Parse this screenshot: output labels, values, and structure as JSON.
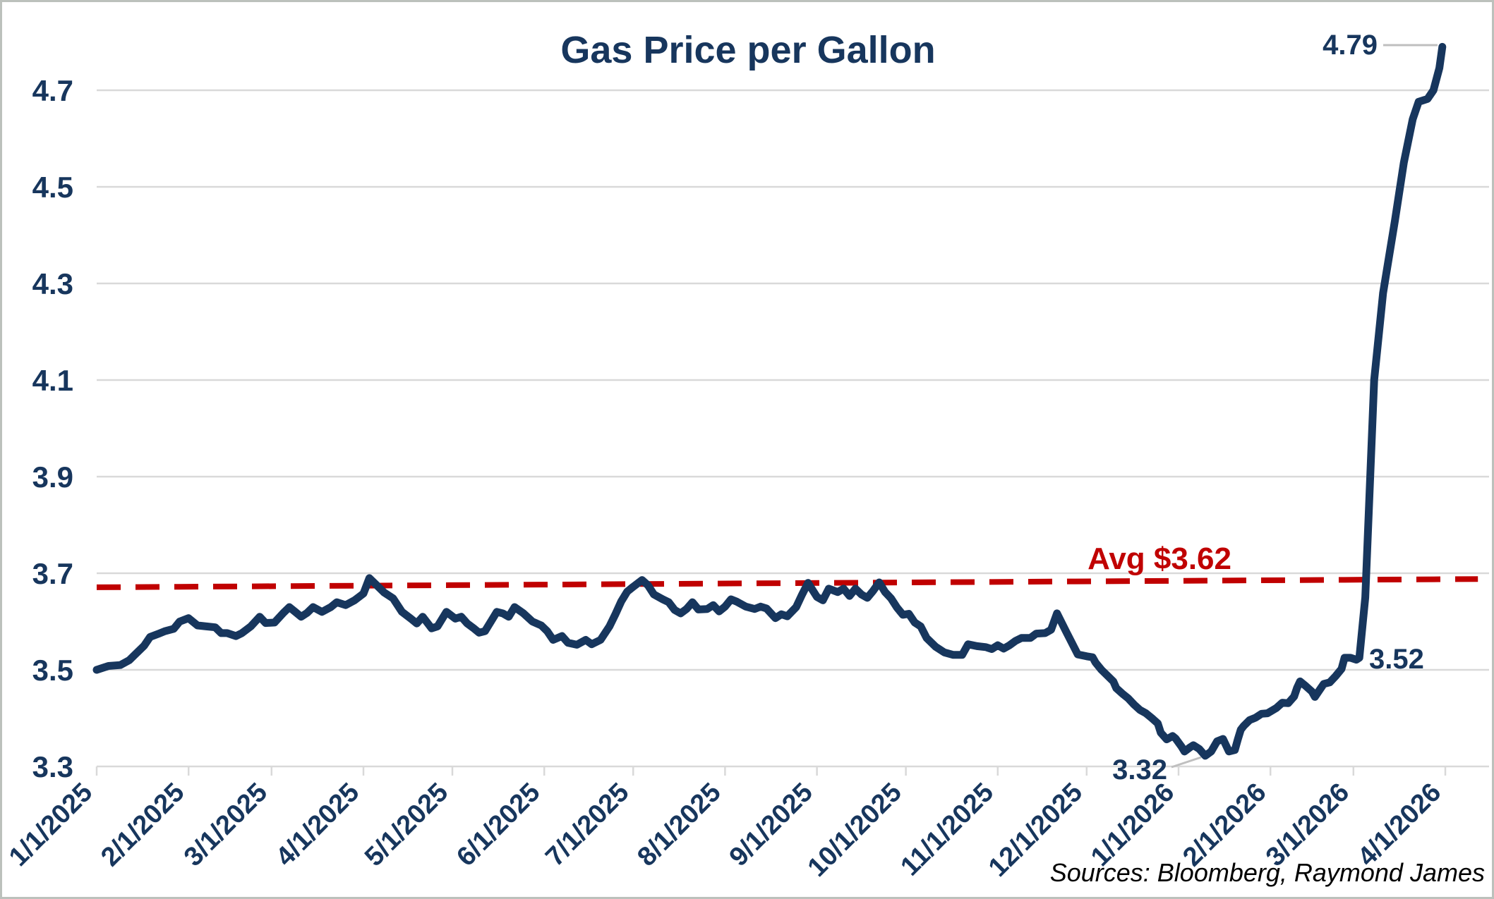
{
  "chart_data": {
    "type": "line",
    "title": "Gas Price per Gallon",
    "source_note": "Sources: Bloomberg, Raymond James",
    "colors": {
      "line": "#17365D",
      "grid": "#D9D9D9",
      "leader": "#BFBFBF",
      "axis_text": "#17365D",
      "average_line": "#C00000",
      "source_text": "#000000"
    },
    "y_axis": {
      "ticks": [
        3.3,
        3.5,
        3.7,
        3.9,
        4.1,
        4.3,
        4.5,
        4.7
      ],
      "min": 3.3,
      "max": 4.8,
      "grid": true
    },
    "x_axis": {
      "tick_labels": [
        "1/1/2025",
        "2/1/2025",
        "3/1/2025",
        "4/1/2025",
        "5/1/2025",
        "6/1/2025",
        "7/1/2025",
        "8/1/2025",
        "9/1/2025",
        "10/1/2025",
        "11/1/2025",
        "12/1/2025",
        "1/1/2026",
        "2/1/2026",
        "3/1/2026",
        "4/1/2026"
      ]
    },
    "average_line": {
      "label": "Avg $3.62",
      "start_date": "1/1/2025",
      "start_value": 3.671,
      "end_date": "4/12/2026",
      "end_value": 3.688,
      "style": "dashed"
    },
    "annotations": [
      {
        "text": "4.79",
        "date": "3/31/2026",
        "value": 4.79
      },
      {
        "text": "3.52",
        "date": "3/2/2026",
        "value": 3.52
      },
      {
        "text": "3.32",
        "date": "1/10/2026",
        "value": 3.32
      }
    ],
    "series": [
      {
        "name": "Gas Price per Gallon",
        "points": [
          [
            "1/1/2025",
            3.5
          ],
          [
            "1/5/2025",
            3.508
          ],
          [
            "1/9/2025",
            3.51
          ],
          [
            "1/12/2025",
            3.52
          ],
          [
            "1/14/2025",
            3.532
          ],
          [
            "1/17/2025",
            3.55
          ],
          [
            "1/19/2025",
            3.568
          ],
          [
            "1/22/2025",
            3.575
          ],
          [
            "1/24/2025",
            3.58
          ],
          [
            "1/27/2025",
            3.585
          ],
          [
            "1/29/2025",
            3.6
          ],
          [
            "2/1/2025",
            3.607
          ],
          [
            "2/4/2025",
            3.592
          ],
          [
            "2/7/2025",
            3.59
          ],
          [
            "2/10/2025",
            3.588
          ],
          [
            "2/12/2025",
            3.576
          ],
          [
            "2/14/2025",
            3.576
          ],
          [
            "2/17/2025",
            3.57
          ],
          [
            "2/19/2025",
            3.576
          ],
          [
            "2/22/2025",
            3.59
          ],
          [
            "2/25/2025",
            3.61
          ],
          [
            "2/27/2025",
            3.597
          ],
          [
            "3/2/2025",
            3.598
          ],
          [
            "3/5/2025",
            3.618
          ],
          [
            "3/7/2025",
            3.63
          ],
          [
            "3/9/2025",
            3.62
          ],
          [
            "3/11/2025",
            3.61
          ],
          [
            "3/13/2025",
            3.618
          ],
          [
            "3/15/2025",
            3.63
          ],
          [
            "3/18/2025",
            3.62
          ],
          [
            "3/21/2025",
            3.63
          ],
          [
            "3/23/2025",
            3.64
          ],
          [
            "3/26/2025",
            3.634
          ],
          [
            "3/29/2025",
            3.644
          ],
          [
            "4/1/2025",
            3.658
          ],
          [
            "4/3/2025",
            3.69
          ],
          [
            "4/5/2025",
            3.678
          ],
          [
            "4/8/2025",
            3.66
          ],
          [
            "4/11/2025",
            3.648
          ],
          [
            "4/14/2025",
            3.62
          ],
          [
            "4/17/2025",
            3.606
          ],
          [
            "4/19/2025",
            3.596
          ],
          [
            "4/21/2025",
            3.61
          ],
          [
            "4/24/2025",
            3.586
          ],
          [
            "4/26/2025",
            3.59
          ],
          [
            "4/29/2025",
            3.62
          ],
          [
            "5/2/2025",
            3.606
          ],
          [
            "5/4/2025",
            3.61
          ],
          [
            "5/6/2025",
            3.596
          ],
          [
            "5/8/2025",
            3.587
          ],
          [
            "5/10/2025",
            3.577
          ],
          [
            "5/12/2025",
            3.58
          ],
          [
            "5/14/2025",
            3.6
          ],
          [
            "5/16/2025",
            3.62
          ],
          [
            "5/18/2025",
            3.617
          ],
          [
            "5/20/2025",
            3.61
          ],
          [
            "5/22/2025",
            3.63
          ],
          [
            "5/25/2025",
            3.617
          ],
          [
            "5/28/2025",
            3.6
          ],
          [
            "5/31/2025",
            3.592
          ],
          [
            "6/2/2025",
            3.58
          ],
          [
            "6/4/2025",
            3.562
          ],
          [
            "6/7/2025",
            3.57
          ],
          [
            "6/9/2025",
            3.556
          ],
          [
            "6/12/2025",
            3.552
          ],
          [
            "6/15/2025",
            3.562
          ],
          [
            "6/17/2025",
            3.553
          ],
          [
            "6/20/2025",
            3.562
          ],
          [
            "6/23/2025",
            3.59
          ],
          [
            "6/25/2025",
            3.615
          ],
          [
            "6/27/2025",
            3.642
          ],
          [
            "6/29/2025",
            3.662
          ],
          [
            "7/1/2025",
            3.672
          ],
          [
            "7/4/2025",
            3.686
          ],
          [
            "7/6/2025",
            3.675
          ],
          [
            "7/8/2025",
            3.656
          ],
          [
            "7/11/2025",
            3.646
          ],
          [
            "7/13/2025",
            3.64
          ],
          [
            "7/15/2025",
            3.624
          ],
          [
            "7/17/2025",
            3.617
          ],
          [
            "7/19/2025",
            3.626
          ],
          [
            "7/21/2025",
            3.64
          ],
          [
            "7/23/2025",
            3.625
          ],
          [
            "7/26/2025",
            3.626
          ],
          [
            "7/28/2025",
            3.634
          ],
          [
            "7/30/2025",
            3.621
          ],
          [
            "8/1/2025",
            3.631
          ],
          [
            "8/3/2025",
            3.646
          ],
          [
            "8/5/2025",
            3.641
          ],
          [
            "8/8/2025",
            3.631
          ],
          [
            "8/11/2025",
            3.626
          ],
          [
            "8/13/2025",
            3.631
          ],
          [
            "8/15/2025",
            3.627
          ],
          [
            "8/18/2025",
            3.607
          ],
          [
            "8/20/2025",
            3.615
          ],
          [
            "8/22/2025",
            3.611
          ],
          [
            "8/25/2025",
            3.63
          ],
          [
            "8/27/2025",
            3.656
          ],
          [
            "8/29/2025",
            3.68
          ],
          [
            "9/1/2025",
            3.651
          ],
          [
            "9/3/2025",
            3.644
          ],
          [
            "9/5/2025",
            3.668
          ],
          [
            "9/8/2025",
            3.661
          ],
          [
            "9/10/2025",
            3.668
          ],
          [
            "9/12/2025",
            3.653
          ],
          [
            "9/14/2025",
            3.668
          ],
          [
            "9/16/2025",
            3.656
          ],
          [
            "9/18/2025",
            3.649
          ],
          [
            "9/20/2025",
            3.664
          ],
          [
            "9/22/2025",
            3.681
          ],
          [
            "9/24/2025",
            3.661
          ],
          [
            "9/26/2025",
            3.648
          ],
          [
            "9/28/2025",
            3.629
          ],
          [
            "9/30/2025",
            3.614
          ],
          [
            "10/2/2025",
            3.616
          ],
          [
            "10/4/2025",
            3.598
          ],
          [
            "10/6/2025",
            3.59
          ],
          [
            "10/8/2025",
            3.566
          ],
          [
            "10/11/2025",
            3.548
          ],
          [
            "10/14/2025",
            3.536
          ],
          [
            "10/17/2025",
            3.531
          ],
          [
            "10/20/2025",
            3.531
          ],
          [
            "10/22/2025",
            3.553
          ],
          [
            "10/25/2025",
            3.549
          ],
          [
            "10/28/2025",
            3.547
          ],
          [
            "10/30/2025",
            3.543
          ],
          [
            "11/1/2025",
            3.551
          ],
          [
            "11/3/2025",
            3.544
          ],
          [
            "11/5/2025",
            3.551
          ],
          [
            "11/7/2025",
            3.56
          ],
          [
            "11/9/2025",
            3.566
          ],
          [
            "11/12/2025",
            3.566
          ],
          [
            "11/14/2025",
            3.575
          ],
          [
            "11/17/2025",
            3.576
          ],
          [
            "11/19/2025",
            3.583
          ],
          [
            "11/21/2025",
            3.617
          ],
          [
            "11/24/2025",
            3.58
          ],
          [
            "11/26/2025",
            3.556
          ],
          [
            "11/28/2025",
            3.532
          ],
          [
            "12/1/2025",
            3.528
          ],
          [
            "12/3/2025",
            3.526
          ],
          [
            "12/4/2025",
            3.515
          ],
          [
            "12/6/2025",
            3.5
          ],
          [
            "12/8/2025",
            3.488
          ],
          [
            "12/10/2025",
            3.476
          ],
          [
            "12/11/2025",
            3.462
          ],
          [
            "12/13/2025",
            3.451
          ],
          [
            "12/15/2025",
            3.441
          ],
          [
            "12/17/2025",
            3.428
          ],
          [
            "12/19/2025",
            3.417
          ],
          [
            "12/21/2025",
            3.41
          ],
          [
            "12/23/2025",
            3.4
          ],
          [
            "12/25/2025",
            3.389
          ],
          [
            "12/26/2025",
            3.37
          ],
          [
            "12/28/2025",
            3.356
          ],
          [
            "12/30/2025",
            3.363
          ],
          [
            "12/31/2025",
            3.358
          ],
          [
            "1/2/2026",
            3.341
          ],
          [
            "1/3/2026",
            3.331
          ],
          [
            "1/5/2026",
            3.34
          ],
          [
            "1/6/2026",
            3.344
          ],
          [
            "1/8/2026",
            3.336
          ],
          [
            "1/10/2026",
            3.322
          ],
          [
            "1/12/2026",
            3.331
          ],
          [
            "1/14/2026",
            3.352
          ],
          [
            "1/16/2026",
            3.357
          ],
          [
            "1/18/2026",
            3.331
          ],
          [
            "1/20/2026",
            3.334
          ],
          [
            "1/21/2026",
            3.356
          ],
          [
            "1/22/2026",
            3.376
          ],
          [
            "1/23/2026",
            3.384
          ],
          [
            "1/25/2026",
            3.396
          ],
          [
            "1/27/2026",
            3.401
          ],
          [
            "1/29/2026",
            3.409
          ],
          [
            "1/31/2026",
            3.41
          ],
          [
            "2/3/2026",
            3.421
          ],
          [
            "2/5/2026",
            3.432
          ],
          [
            "2/7/2026",
            3.431
          ],
          [
            "2/9/2026",
            3.445
          ],
          [
            "2/10/2026",
            3.463
          ],
          [
            "2/11/2026",
            3.476
          ],
          [
            "2/13/2026",
            3.466
          ],
          [
            "2/15/2026",
            3.455
          ],
          [
            "2/16/2026",
            3.444
          ],
          [
            "2/18/2026",
            3.462
          ],
          [
            "2/19/2026",
            3.471
          ],
          [
            "2/21/2026",
            3.474
          ],
          [
            "2/23/2026",
            3.487
          ],
          [
            "2/25/2026",
            3.502
          ],
          [
            "2/26/2026",
            3.525
          ],
          [
            "2/28/2026",
            3.525
          ],
          [
            "3/2/2026",
            3.521
          ],
          [
            "3/3/2026",
            3.525
          ],
          [
            "3/5/2026",
            3.65
          ],
          [
            "3/8/2026",
            4.1
          ],
          [
            "3/11/2026",
            4.28
          ],
          [
            "3/15/2026",
            4.43
          ],
          [
            "3/18/2026",
            4.55
          ],
          [
            "3/21/2026",
            4.64
          ],
          [
            "3/23/2026",
            4.676
          ],
          [
            "3/26/2026",
            4.682
          ],
          [
            "3/28/2026",
            4.7
          ],
          [
            "3/30/2026",
            4.746
          ],
          [
            "3/31/2026",
            4.79
          ]
        ]
      }
    ],
    "layout_hints": {
      "legend": "none",
      "x_label_rotation_deg": -45,
      "grid_orientation": "horizontal"
    }
  }
}
